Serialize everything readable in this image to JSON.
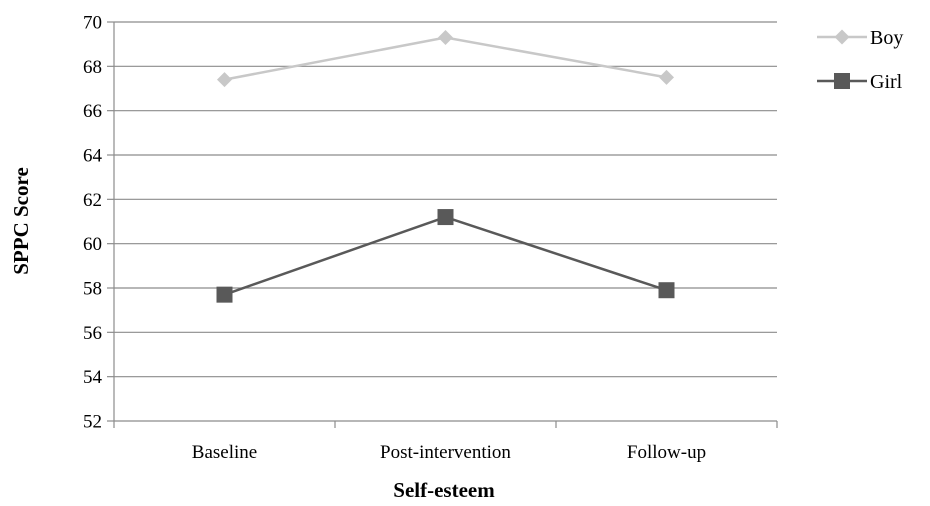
{
  "chart_data": {
    "type": "line",
    "title": "",
    "xlabel": "Self-esteem",
    "ylabel": "SPPC Score",
    "categories": [
      "Baseline",
      "Post-intervention",
      "Follow-up"
    ],
    "ylim": [
      52,
      70
    ],
    "yticks": [
      "52",
      "54",
      "56",
      "58",
      "60",
      "62",
      "64",
      "66",
      "68",
      "70"
    ],
    "grid": true,
    "legend_position": "right",
    "series": [
      {
        "name": "Boy",
        "values": [
          67.4,
          69.3,
          67.5
        ],
        "color": "#c8c8c8",
        "marker": "diamond"
      },
      {
        "name": "Girl",
        "values": [
          57.7,
          61.2,
          57.9
        ],
        "color": "#595959",
        "marker": "square"
      }
    ]
  }
}
